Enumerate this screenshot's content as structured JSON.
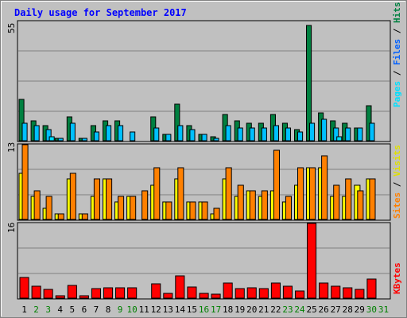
{
  "chart_data": {
    "type": "bar",
    "title": "Daily usage for September 2017",
    "categories": [
      "1",
      "2",
      "3",
      "4",
      "5",
      "6",
      "7",
      "8",
      "9",
      "10",
      "11",
      "12",
      "13",
      "14",
      "15",
      "16",
      "17",
      "18",
      "19",
      "20",
      "21",
      "22",
      "23",
      "24",
      "25",
      "26",
      "27",
      "28",
      "29",
      "30",
      "31"
    ],
    "weekend_days": [
      "2",
      "3",
      "9",
      "10",
      "16",
      "17",
      "23",
      "24",
      "30",
      "31"
    ],
    "colors": {
      "background": "#c0c0c0",
      "frame": "#000080",
      "title": "#0000ff",
      "day_label": "#000000",
      "weekend_label": "#008000",
      "hits": "#008040",
      "files": "#00c0ff",
      "pages": "#00e0ff",
      "visits": "#ffff00",
      "sites": "#ff8000",
      "kbytes": "#ff0000",
      "separator": "#000080"
    },
    "panels": [
      {
        "id": "hits_files_pages",
        "ymax_label": "55",
        "ylim": [
          0,
          55
        ],
        "legend": [
          "Pages",
          "Files",
          "Hits"
        ],
        "series": [
          {
            "name": "Hits",
            "color_key": "hits",
            "values": [
              19,
              9,
              7,
              1,
              11,
              1,
              7,
              9,
              9,
              0,
              0,
              11,
              3,
              17,
              7,
              3,
              2,
              12,
              9,
              8,
              8,
              12,
              8,
              5,
              53,
              13,
              9,
              8,
              6,
              16,
              0
            ]
          },
          {
            "name": "Files",
            "color_key": "files",
            "values": [
              8,
              7,
              5,
              1,
              8,
              1,
              4,
              7,
              7,
              4,
              0,
              6,
              3,
              7,
              5,
              3,
              1,
              7,
              6,
              6,
              6,
              7,
              6,
              4,
              8,
              10,
              6,
              6,
              6,
              8,
              0
            ]
          },
          {
            "name": "Pages",
            "color_key": "pages",
            "values": [
              0,
              0,
              2,
              0,
              0,
              0,
              0,
              0,
              0,
              0,
              0,
              0,
              0,
              0,
              0,
              0,
              0,
              0,
              0,
              0,
              0,
              0,
              0,
              0,
              0,
              0,
              2,
              0,
              0,
              0,
              0
            ]
          }
        ]
      },
      {
        "id": "visits_sites",
        "ymax_label": "13",
        "ylim": [
          0,
          13
        ],
        "legend": [
          "Sites",
          "Visits"
        ],
        "series": [
          {
            "name": "Visits",
            "color_key": "visits",
            "values": [
              8,
              4,
              2,
              1,
              7,
              1,
              4,
              7,
              3,
              4,
              0,
              6,
              3,
              7,
              3,
              3,
              1,
              7,
              4,
              5,
              4,
              5,
              3,
              6,
              9,
              9,
              4,
              4,
              6,
              7,
              0
            ]
          },
          {
            "name": "Sites",
            "color_key": "sites",
            "values": [
              13,
              5,
              4,
              1,
              8,
              1,
              7,
              7,
              4,
              4,
              5,
              9,
              3,
              9,
              3,
              3,
              2,
              9,
              6,
              5,
              5,
              12,
              4,
              9,
              9,
              11,
              6,
              7,
              5,
              7,
              0
            ]
          }
        ]
      },
      {
        "id": "kbytes",
        "ymax_label": "16",
        "ylim": [
          0,
          16
        ],
        "legend": [
          "KBytes"
        ],
        "series": [
          {
            "name": "KBytes",
            "color_key": "kbytes",
            "values": [
              4.5,
              2.5,
              1.8,
              0.5,
              2.8,
              0.5,
              2,
              2.2,
              2.2,
              2.2,
              0,
              3,
              1,
              4.7,
              2.3,
              1,
              0.9,
              3.2,
              2,
              2.2,
              2,
              3.3,
              2.5,
              1.5,
              16,
              3.3,
              2.5,
              2.2,
              1.8,
              4,
              0
            ]
          }
        ]
      }
    ]
  }
}
